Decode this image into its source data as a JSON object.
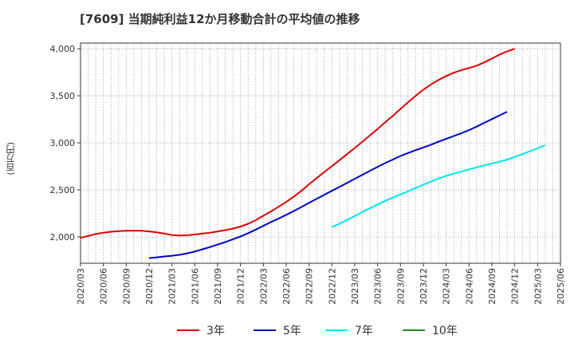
{
  "chart_data": {
    "type": "line",
    "title": "[7609]  当期純利益12か月移動合計の平均値の推移",
    "ylabel": "(百万円)",
    "xlabel": "",
    "ylim": [
      1720,
      4060
    ],
    "yticks": [
      2000,
      2500,
      3000,
      3500,
      4000
    ],
    "ytick_labels": [
      "2,000",
      "2,500",
      "3,000",
      "3,500",
      "4,000"
    ],
    "x_tick_labels": [
      "2020/03",
      "2020/06",
      "2020/09",
      "2020/12",
      "2021/03",
      "2021/06",
      "2021/09",
      "2021/12",
      "2022/03",
      "2022/06",
      "2022/09",
      "2022/12",
      "2023/03",
      "2023/06",
      "2023/09",
      "2023/12",
      "2024/03",
      "2024/06",
      "2024/09",
      "2024/12",
      "2025/03",
      "2025/06"
    ],
    "grid": true,
    "legend_position": "bottom",
    "series": [
      {
        "name": "3年",
        "color": "#e00000",
        "start": "2020/03",
        "values": [
          1990,
          2010,
          2030,
          2045,
          2055,
          2062,
          2065,
          2066,
          2065,
          2058,
          2048,
          2035,
          2020,
          2015,
          2018,
          2025,
          2035,
          2045,
          2058,
          2072,
          2088,
          2110,
          2140,
          2178,
          2225,
          2270,
          2320,
          2372,
          2428,
          2490,
          2560,
          2625,
          2690,
          2752,
          2815,
          2880,
          2945,
          3012,
          3080,
          3148,
          3218,
          3288,
          3360,
          3432,
          3500,
          3565,
          3620,
          3668,
          3710,
          3745,
          3773,
          3795,
          3820,
          3855,
          3895,
          3938,
          3972,
          4000
        ]
      },
      {
        "name": "5年",
        "color": "#0000cc",
        "start": "2020/12",
        "values": [
          1775,
          1783,
          1792,
          1800,
          1810,
          1825,
          1845,
          1868,
          1892,
          1918,
          1945,
          1975,
          2005,
          2040,
          2078,
          2118,
          2158,
          2195,
          2235,
          2275,
          2318,
          2363,
          2405,
          2448,
          2490,
          2532,
          2575,
          2618,
          2660,
          2703,
          2745,
          2785,
          2822,
          2860,
          2892,
          2922,
          2950,
          2980,
          3012,
          3042,
          3072,
          3102,
          3135,
          3172,
          3212,
          3252,
          3292,
          3330
        ]
      },
      {
        "name": "7年",
        "color": "#00e5ee",
        "start": "2022/12",
        "values": [
          2105,
          2140,
          2180,
          2222,
          2265,
          2305,
          2345,
          2383,
          2418,
          2452,
          2485,
          2520,
          2555,
          2588,
          2620,
          2648,
          2672,
          2695,
          2718,
          2740,
          2760,
          2780,
          2800,
          2822,
          2850,
          2880,
          2910,
          2942,
          2975
        ]
      },
      {
        "name": "10年",
        "color": "#228b22",
        "start": "",
        "values": []
      }
    ]
  }
}
